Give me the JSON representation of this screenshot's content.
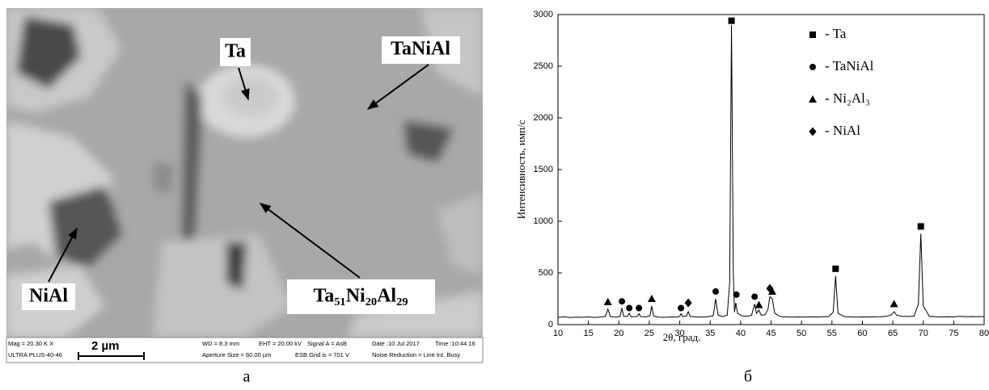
{
  "image": {
    "labels": [
      "Ta",
      "TaNiAl",
      "NiAl",
      "Ta₅₁Ni₂₀Al₂₉"
    ],
    "info_bar": [
      "Mag = 20.30 K X",
      "ULTRA PLUS-40-46",
      "2 µm",
      "WD = 8.3 mm",
      "EHT = 20.00 kV",
      "Signal A = AsB",
      "Date :10 Jul 2017",
      "Time :10:44:16",
      "Aperture Size = 60.00 µm",
      "ESB Grid is = 701 V",
      "Noise Reduction = Line Int. Busy"
    ]
  },
  "panel_labels": [
    "а",
    "б"
  ],
  "chart_data": {
    "type": "line",
    "x_label": "2θ, град.",
    "y_label": "Интенсивность, имп/с",
    "xlim": [
      10,
      80
    ],
    "xticks": [
      10,
      15,
      20,
      25,
      30,
      35,
      40,
      45,
      50,
      55,
      60,
      65,
      70,
      75,
      80
    ],
    "ylim": [
      0,
      3000
    ],
    "yticks": [
      0,
      500,
      1000,
      1500,
      2000,
      2500,
      3000
    ],
    "legend": "upper right",
    "series": [
      {
        "color": "#000000",
        "x": [
          10,
          11,
          12,
          13,
          14,
          15,
          16,
          17,
          17.8,
          18.2,
          18.6,
          19.5,
          20.2,
          20.5,
          20.8,
          21.4,
          21.7,
          22.0,
          23.0,
          23.3,
          23.6,
          24.5,
          25.1,
          25.4,
          25.7,
          26.5,
          27.5,
          28.5,
          29.5,
          30.0,
          30.2,
          30.5,
          31.1,
          31.4,
          31.7,
          32.5,
          33.5,
          34.5,
          35.5,
          35.9,
          36.3,
          37,
          37.8,
          38.2,
          38.5,
          38.8,
          39.0,
          39.2,
          39.5,
          40.2,
          41,
          41.8,
          42.3,
          42.6,
          43.0,
          43.4,
          44.0,
          44.5,
          44.8,
          45.2,
          45.6,
          46.5,
          47.5,
          48.5,
          49.5,
          50.5,
          51.5,
          52.5,
          53.5,
          54.5,
          55.2,
          55.6,
          56.0,
          57,
          58,
          59,
          60,
          61,
          62,
          63,
          64,
          64.8,
          65.2,
          65.6,
          66.5,
          67.5,
          68.5,
          69.2,
          69.6,
          70.0,
          71,
          72,
          73,
          74,
          75,
          76,
          77,
          78,
          79,
          80
        ],
        "values": [
          70,
          75,
          68,
          72,
          70,
          74,
          69,
          73,
          80,
          150,
          78,
          72,
          80,
          160,
          80,
          78,
          110,
          76,
          78,
          105,
          77,
          75,
          85,
          180,
          82,
          72,
          70,
          74,
          72,
          80,
          105,
          78,
          82,
          125,
          80,
          74,
          72,
          75,
          85,
          250,
          90,
          78,
          90,
          400,
          2900,
          500,
          120,
          210,
          110,
          85,
          80,
          90,
          200,
          110,
          140,
          90,
          95,
          150,
          270,
          250,
          110,
          78,
          74,
          72,
          74,
          72,
          75,
          73,
          76,
          78,
          120,
          470,
          110,
          78,
          74,
          72,
          74,
          73,
          75,
          76,
          80,
          95,
          125,
          92,
          80,
          78,
          82,
          200,
          880,
          180,
          80,
          76,
          74,
          76,
          75,
          80,
          76,
          78,
          77,
          78
        ]
      },
      {
        "name": "- Ta",
        "marker": "square",
        "color": "#000000",
        "x": [
          38.5,
          55.6,
          69.6
        ],
        "values": [
          2940,
          540,
          950
        ]
      },
      {
        "name": "- TaNiAl",
        "marker": "circle",
        "color": "#000000",
        "x": [
          20.5,
          21.7,
          23.3,
          30.2,
          35.9,
          39.3,
          42.3
        ],
        "values": [
          225,
          160,
          160,
          160,
          320,
          290,
          270
        ]
      },
      {
        "name": "- Ni₂Al₃",
        "marker": "triangle",
        "color": "#000000",
        "x": [
          18.2,
          25.4,
          43.0,
          45.2,
          65.2
        ],
        "values": [
          220,
          250,
          190,
          320,
          200
        ]
      },
      {
        "name": "- NiAl",
        "marker": "diamond",
        "color": "#000000",
        "x": [
          31.4,
          44.8
        ],
        "values": [
          210,
          350
        ]
      }
    ]
  }
}
